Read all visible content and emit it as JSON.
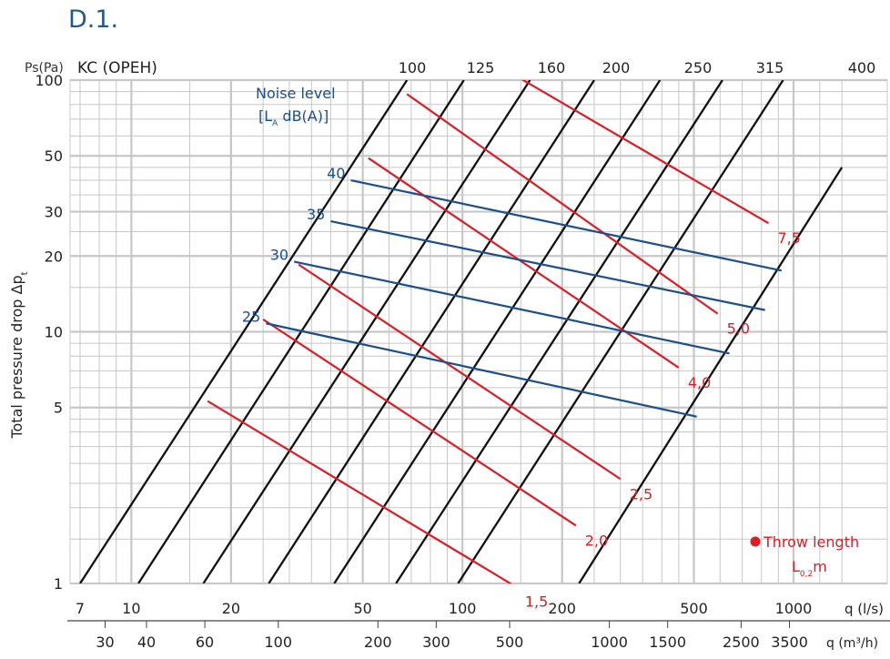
{
  "heading": "D.1.",
  "chart_data": {
    "type": "line",
    "title": "",
    "model_label": "KC (OPEH)",
    "xlabel": "q (l/s)",
    "xlabel2": "q (m³/h)",
    "ylabel": "Total pressure drop Δp",
    "ylabel_sub": "t",
    "yunit_label": "Ps(Pa)",
    "xscale": "log",
    "yscale": "log",
    "xlim": [
      7,
      1400
    ],
    "ylim": [
      1,
      100
    ],
    "grid": true,
    "x_ticks": [
      "7",
      "10",
      "20",
      "50",
      "100",
      "200",
      "500",
      "1000"
    ],
    "x_tick_values": [
      7,
      10,
      20,
      50,
      100,
      200,
      500,
      1000
    ],
    "x2_ticks": [
      "30",
      "40",
      "60",
      "100",
      "200",
      "300",
      "500",
      "1000",
      "1500",
      "2500",
      "3500"
    ],
    "x2_tick_values_m3h": [
      30,
      40,
      60,
      100,
      200,
      300,
      500,
      1000,
      1500,
      2500,
      3500
    ],
    "y_ticks": [
      "1",
      "5",
      "10",
      "20",
      "30",
      "50",
      "100"
    ],
    "y_tick_values": [
      1,
      5,
      10,
      20,
      30,
      50,
      100
    ],
    "size_series": [
      {
        "name": "100",
        "points": [
          [
            7,
            1
          ],
          [
            68,
            100
          ]
        ]
      },
      {
        "name": "125",
        "points": [
          [
            10.5,
            1
          ],
          [
            101,
            100
          ]
        ]
      },
      {
        "name": "160",
        "points": [
          [
            16.5,
            1
          ],
          [
            160,
            100
          ]
        ]
      },
      {
        "name": "200",
        "points": [
          [
            26,
            1
          ],
          [
            250,
            100
          ]
        ]
      },
      {
        "name": "250",
        "points": [
          [
            41,
            1
          ],
          [
            395,
            100
          ]
        ]
      },
      {
        "name": "315",
        "points": [
          [
            63,
            1
          ],
          [
            610,
            100
          ]
        ]
      },
      {
        "name": "400",
        "points": [
          [
            97,
            1
          ],
          [
            930,
            100
          ]
        ]
      },
      {
        "name": "",
        "points": [
          [
            225,
            1
          ],
          [
            1400,
            45
          ]
        ]
      }
    ],
    "noise_title": "Noise level",
    "noise_unit_prefix": "[L",
    "noise_unit_sub": "A",
    "noise_unit_suffix": " dB(A)]",
    "noise_color": "#1a4f8c",
    "noise_series": [
      {
        "name": "25",
        "points": [
          [
            25.5,
            10.8
          ],
          [
            510,
            4.6
          ]
        ]
      },
      {
        "name": "30",
        "points": [
          [
            31,
            19
          ],
          [
            640,
            8.2
          ]
        ]
      },
      {
        "name": "35",
        "points": [
          [
            40,
            27.5
          ],
          [
            820,
            12.2
          ]
        ]
      },
      {
        "name": "40",
        "points": [
          [
            46,
            40
          ],
          [
            920,
            17.5
          ]
        ]
      }
    ],
    "throw_title": "Throw length",
    "throw_unit_prefix": "L",
    "throw_unit_sub": "0,2",
    "throw_unit_suffix": "m",
    "throw_color": "#e01b24",
    "throw_series": [
      {
        "name": "1,5",
        "points": [
          [
            17,
            5.3
          ],
          [
            145,
            0.97
          ]
        ]
      },
      {
        "name": "2,0",
        "points": [
          [
            25,
            11.2
          ],
          [
            220,
            1.7
          ]
        ]
      },
      {
        "name": "2,5",
        "points": [
          [
            32,
            18.5
          ],
          [
            300,
            2.6
          ]
        ]
      },
      {
        "name": "4,0",
        "points": [
          [
            52,
            49
          ],
          [
            450,
            7.2
          ]
        ]
      },
      {
        "name": "5,0",
        "points": [
          [
            68,
            88
          ],
          [
            590,
            11.8
          ]
        ]
      },
      {
        "name": "7,5",
        "points": [
          [
            90,
            150
          ],
          [
            840,
            27
          ]
        ]
      }
    ]
  }
}
